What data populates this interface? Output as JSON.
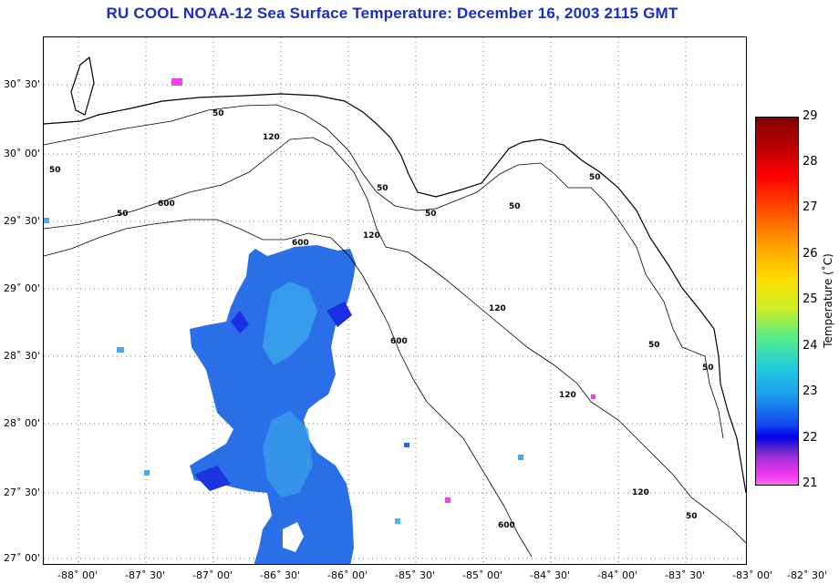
{
  "title": "RU COOL  NOAA-12  Sea Surface Temperature:  December 16, 2003 2115 GMT",
  "map": {
    "lat_labels": [
      "30˚ 30'",
      "30˚ 00'",
      "29˚ 30'",
      "29˚ 00'",
      "28˚ 30'",
      "28˚ 00'",
      "27˚ 30'",
      "27˚ 00'"
    ],
    "lon_labels": [
      "-88˚ 00'",
      "-87˚ 30'",
      "-87˚ 00'",
      "-86˚ 30'",
      "-86˚ 00'",
      "-85˚ 30'",
      "-85˚ 00'",
      "-84˚ 30'",
      "-84˚ 00'",
      "-83˚ 30'",
      "-83˚ 00'",
      "-82˚ 30'"
    ],
    "contour_labels": [
      "50",
      "120",
      "50",
      "50",
      "50",
      "50",
      "50",
      "50",
      "600",
      "120",
      "600",
      "120",
      "600",
      "120",
      "50",
      "50",
      "600",
      "120",
      "50"
    ]
  },
  "colorbar": {
    "title": "Temperature (˚C)",
    "ticks": [
      "29",
      "28",
      "27",
      "26",
      "25",
      "24",
      "23",
      "22",
      "21"
    ],
    "min": 21,
    "max": 29
  }
}
